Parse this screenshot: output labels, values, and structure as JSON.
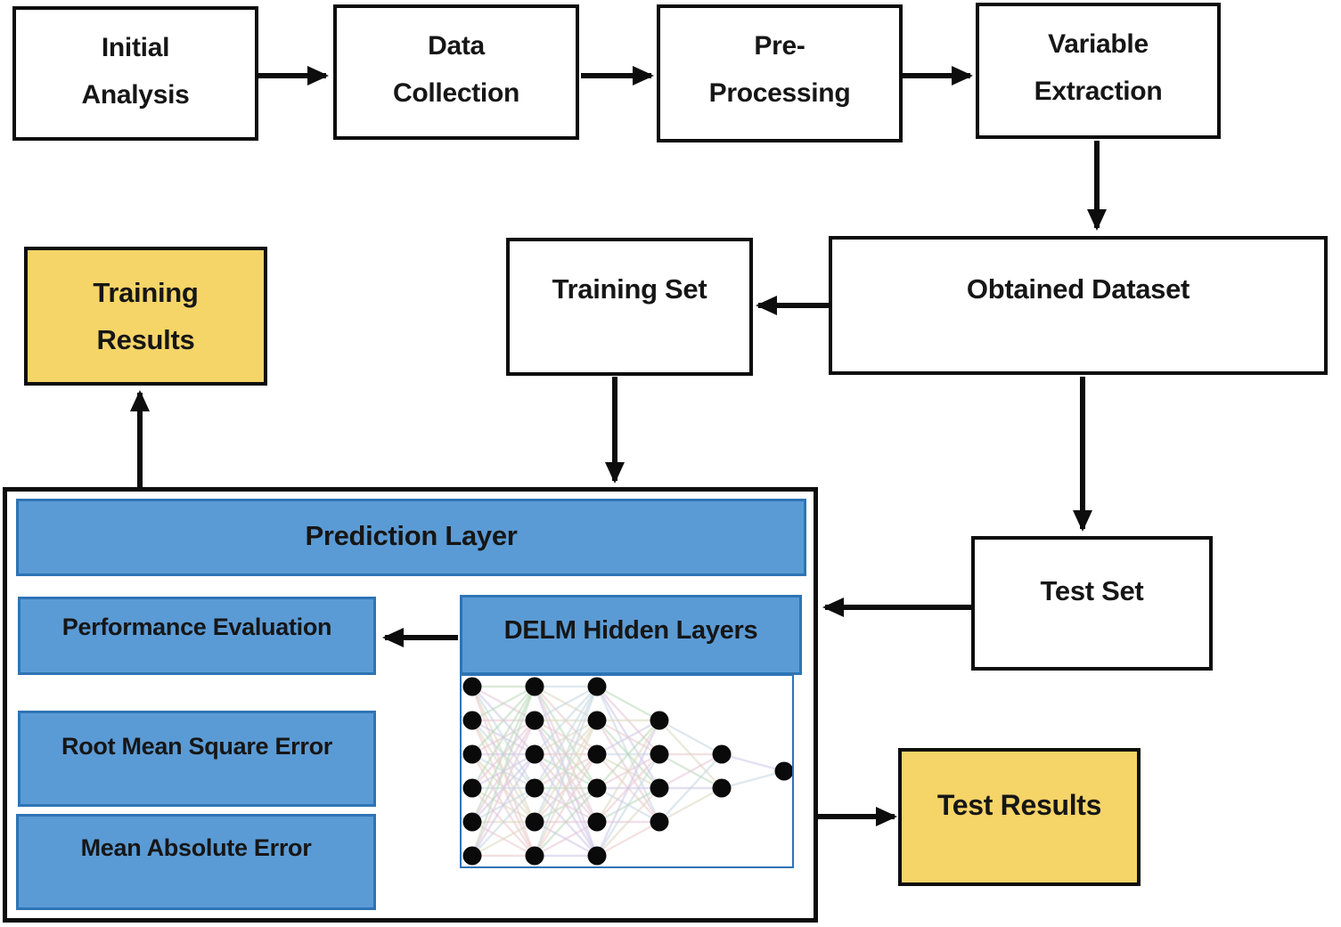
{
  "nodes": {
    "initial_analysis": "Initial\nAnalysis",
    "data_collection": "Data\nCollection",
    "pre_processing": "Pre-\nProcessing",
    "variable_extraction": "Variable\nExtraction",
    "obtained_dataset": "Obtained Dataset",
    "training_set": "Training Set",
    "training_results": "Training\nResults",
    "test_set": "Test Set",
    "prediction_layer": "Prediction Layer",
    "performance_evaluation": "Performance Evaluation",
    "delm_hidden_layers": "DELM Hidden Layers",
    "root_mean_square_error": "Root Mean Square Error",
    "mean_absolute_error": "Mean Absolute Error",
    "test_results": "Test Results"
  },
  "colors": {
    "blue_fill": "#5B9BD5",
    "blue_border": "#2E74B5",
    "yellow_fill": "#F5D468",
    "arrow_black": "#0d0d0d",
    "text_ink": "#161616"
  },
  "delm_network": {
    "layers": [
      6,
      6,
      6,
      4,
      2,
      1
    ],
    "node_color": "#0a0a0a",
    "link_palette": [
      "#b9d9b9",
      "#e7c6d6",
      "#cfc6e6",
      "#c6d7e2",
      "#ded8c1",
      "#eccaca"
    ]
  }
}
